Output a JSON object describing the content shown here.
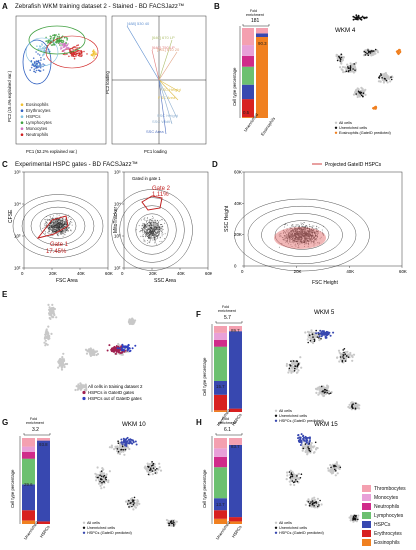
{
  "panels": {
    "A": {
      "letter": "A",
      "title": "Zebrafish WKM training dataset 2 - Stained - BD FACSJazz™",
      "pca_xlabel": "PC1 (52.2% explained var.)",
      "pca_ylabel": "PC2 (15.4% explained var.)",
      "legend": [
        "Eosinophils",
        "Erythrocytes",
        "HSPCs",
        "Lymphocytes",
        "Monocytes",
        "Neutrophils"
      ],
      "legend_colors": [
        "#f0c030",
        "#3060c0",
        "#80c0e0",
        "#40a040",
        "#d070c0",
        "#d02020"
      ],
      "loading_xlabel": "PC1 loading",
      "loading_ylabel": "PC2 loading",
      "loadings": [
        "[488] 530 40",
        "[640] 670 LP",
        "[640] 750 LP",
        "[561] 610 20",
        "FSC Height",
        "FSC Area",
        "SSC Height",
        "SSC Width",
        "SSC Area"
      ]
    },
    "B": {
      "letter": "B",
      "ylabel": "Cell type percentage",
      "fold_label": "Fold\nenrichment",
      "fold_value": "181",
      "bars": [
        "Unenriched",
        "Eosinophils"
      ],
      "bar_values": [
        "0.5",
        "90.3"
      ],
      "umap_title": "WKM 4",
      "legend": [
        "All cells",
        "Unenriched cells",
        "Eosinophils (GateID predicted)"
      ]
    },
    "C": {
      "letter": "C",
      "title": "Experimental HSPC gates - BD FACSJazz™",
      "plot1_ylabel": "CFSE",
      "plot1_xlabel": "FSC Area",
      "gate1_name": "Gate 1",
      "gate1_pct": "17.45%",
      "plot2_note": "Gated in gate 1",
      "plot2_ylabel": "MitoTracker",
      "plot2_xlabel": "SSC Area",
      "gate2_name": "Gate 2",
      "gate2_pct": "1.11%",
      "ticks_x": [
        "0",
        "20K",
        "40K",
        "60K"
      ],
      "ticks_y": [
        "10²",
        "10³",
        "10⁴",
        "10⁵"
      ]
    },
    "D": {
      "letter": "D",
      "legend": "Projected GateID HSPCs",
      "ylabel": "SSC Height",
      "xlabel": "FSC Height",
      "ticks_x": [
        "0",
        "20K",
        "40K",
        "60K"
      ],
      "ticks_y": [
        "0",
        "20K",
        "40K",
        "60K"
      ]
    },
    "E": {
      "letter": "E",
      "legend": [
        "All cells in training dataset 2",
        "HSPCs in GateID gates",
        "HSPCs out of GateID gates"
      ]
    },
    "F": {
      "letter": "F",
      "umap_title": "WKM 5",
      "fold_label": "Fold\nenrichment",
      "fold_value": "5.7",
      "bar_values": [
        "15.7",
        "89.7"
      ],
      "bars": [
        "Unenriched",
        "HSPCs"
      ],
      "ylabel": "Cell type percentage",
      "legend": [
        "All cells",
        "Unenriched cells",
        "HSPCs (GateID predicted)"
      ]
    },
    "G": {
      "letter": "G",
      "umap_title": "WKM 10",
      "fold_label": "Fold\nenrichment",
      "fold_value": "3.2",
      "bar_values": [
        "29.6",
        "93.8"
      ],
      "bars": [
        "Unenriched",
        "HSPCs"
      ],
      "ylabel": "Cell type percentage",
      "legend": [
        "All cells",
        "Unenriched cells",
        "HSPCs (GateID predicted)"
      ]
    },
    "H": {
      "letter": "H",
      "umap_title": "WKM 15",
      "fold_label": "Fold\nenrichment",
      "fold_value": "6.1",
      "bar_values": [
        "13.7",
        "83.7"
      ],
      "bars": [
        "Unenriched",
        "HSPCs"
      ],
      "ylabel": "Cell type percentage",
      "legend": [
        "All cells",
        "Unenriched cells",
        "HSPCs (GateID predicted)"
      ]
    }
  },
  "celltype_legend": {
    "items": [
      "Thrombocytes",
      "Monocytes",
      "Neutrophils",
      "Lymphocytes",
      "HSPCs",
      "Erythrocytes",
      "Eosinophils"
    ],
    "colors": [
      "#f4a0b0",
      "#e8a0d8",
      "#d02a8a",
      "#6cc070",
      "#3848b0",
      "#d82020",
      "#f08020"
    ]
  },
  "stack_colors": {
    "thrombocytes": "#f4a0b0",
    "monocytes": "#e8a0d8",
    "neutrophils": "#d02a8a",
    "lymphocytes": "#6cc070",
    "hspcs": "#3848b0",
    "erythrocytes": "#d82020",
    "eosinophils": "#f08020"
  }
}
